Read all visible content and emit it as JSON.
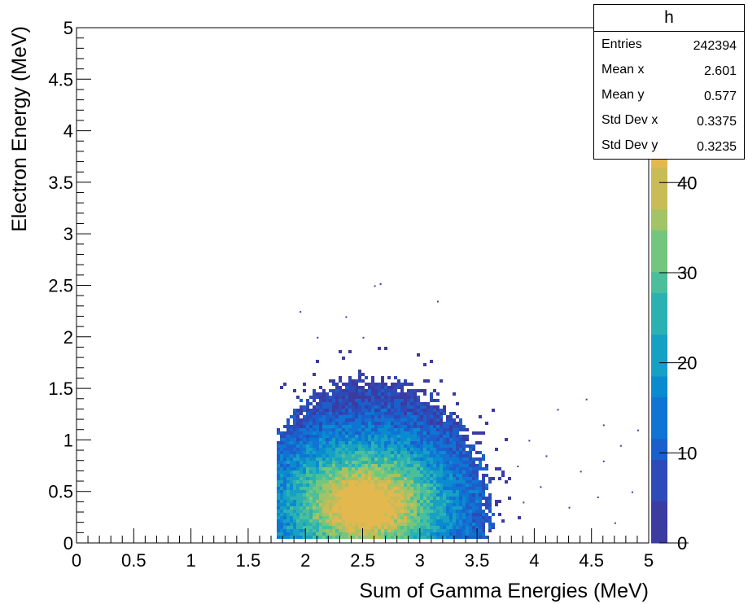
{
  "chart_data": {
    "type": "heatmap",
    "xlabel": "Sum of Gamma Energies (MeV)",
    "ylabel": "Electron Energy (MeV)",
    "xlim": [
      0,
      5
    ],
    "ylim": [
      0,
      5
    ],
    "x_ticks": [
      "0",
      "0.5",
      "1",
      "1.5",
      "2",
      "2.5",
      "3",
      "3.5",
      "4",
      "4.5",
      "5"
    ],
    "y_ticks": [
      "0",
      "0.5",
      "1",
      "1.5",
      "2",
      "2.5",
      "3",
      "3.5",
      "4",
      "4.5",
      "5"
    ],
    "z_ticks": [
      "0",
      "10",
      "20",
      "30",
      "40"
    ],
    "zlim": [
      0,
      44
    ],
    "distribution": {
      "x_min": 1.75,
      "x_peak": 2.52,
      "y_peak": 0.38,
      "y_min": 0.05,
      "max_count": 40
    },
    "palette": [
      "#3b3ba1",
      "#2c4ab8",
      "#1b5fcc",
      "#1074d4",
      "#0b8bcf",
      "#16a0c4",
      "#2cb1b3",
      "#4bbf9b",
      "#73c67e",
      "#a2c366",
      "#c9bc57",
      "#e3b84f"
    ],
    "stats": {
      "title": "h",
      "rows": [
        {
          "label": "Entries",
          "value": "242394"
        },
        {
          "label": "Mean x",
          "value": "2.601"
        },
        {
          "label": "Mean y",
          "value": "0.577"
        },
        {
          "label": "Std Dev x",
          "value": "0.3375"
        },
        {
          "label": "Std Dev y",
          "value": "0.3235"
        }
      ]
    }
  }
}
